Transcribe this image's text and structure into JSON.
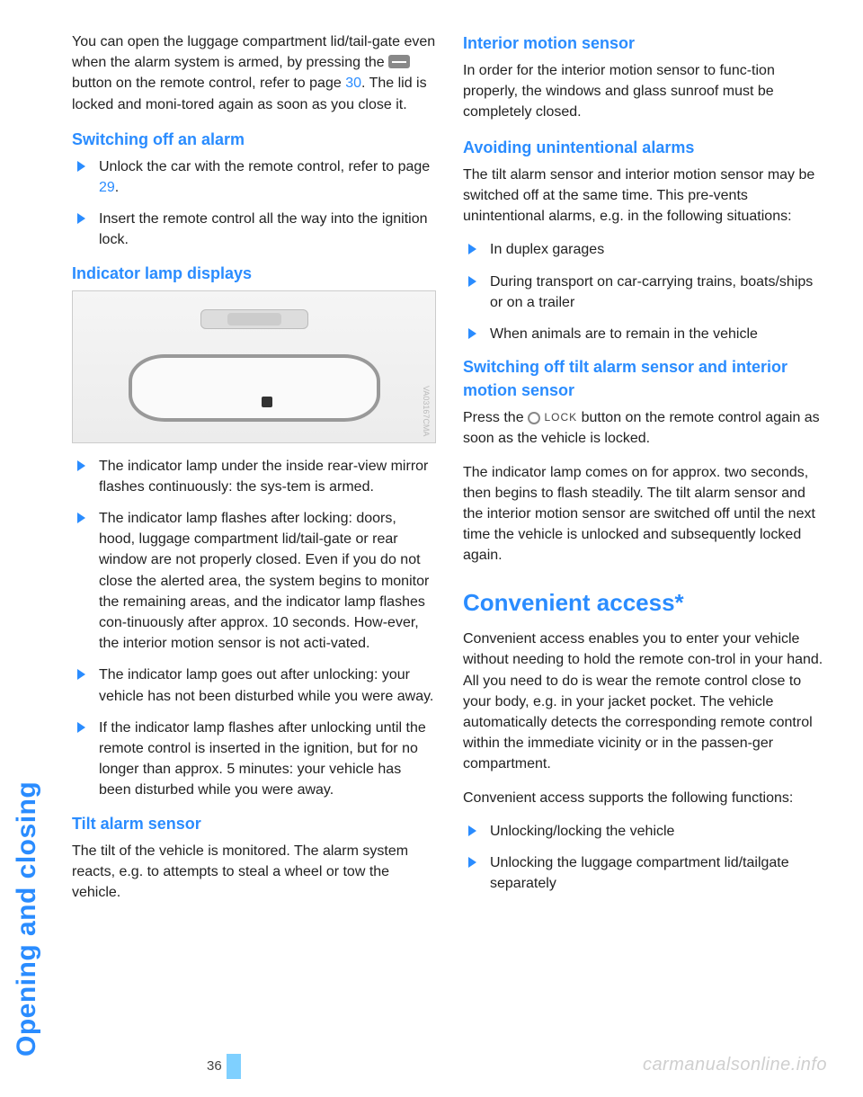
{
  "sideTab": "Opening and closing",
  "pageNumber": "36",
  "watermark": "carmanualsonline.info",
  "figureCode": "VA03167CMA",
  "colors": {
    "accent": "#2a8cff",
    "footerBar": "#7fd0ff",
    "watermark": "#cfcfcf"
  },
  "left": {
    "intro_a": "You can open the luggage compartment lid/tail-gate even when the alarm system is armed, by pressing the ",
    "intro_b": " button on the remote control, refer to page ",
    "intro_pageref": "30",
    "intro_c": ". The lid is locked and moni-tored again as soon as you close it.",
    "h1": "Switching off an alarm",
    "l1a_a": "Unlock the car with the remote control, refer to page ",
    "l1a_pageref": "29",
    "l1a_b": ".",
    "l1b": "Insert the remote control all the way into the ignition lock.",
    "h2": "Indicator lamp displays",
    "l2a": "The indicator lamp under the inside rear-view mirror flashes continuously: the sys-tem is armed.",
    "l2b": "The indicator lamp flashes after locking: doors, hood, luggage compartment lid/tail-gate or rear window are not properly closed. Even if you do not close the alerted area, the system begins to monitor the remaining areas, and the indicator lamp flashes con-tinuously after approx. 10 seconds. How-ever, the interior motion sensor is not acti-vated.",
    "l2c": "The indicator lamp goes out after unlocking: your vehicle has not been disturbed while you were away.",
    "l2d": "If the indicator lamp flashes after unlocking until the remote control is inserted in the ignition, but for no longer than approx. 5 minutes: your vehicle has been disturbed while you were away."
  },
  "right": {
    "h1": "Tilt alarm sensor",
    "p1": "The tilt of the vehicle is monitored. The alarm system reacts, e.g. to attempts to steal a wheel or tow the vehicle.",
    "h2": "Interior motion sensor",
    "p2": "In order for the interior motion sensor to func-tion properly, the windows and glass sunroof must be completely closed.",
    "h3": "Avoiding unintentional alarms",
    "p3": "The tilt alarm sensor and interior motion sensor may be switched off at the same time. This pre-vents unintentional alarms, e.g. in the following situations:",
    "l3a": "In duplex garages",
    "l3b": "During transport on car-carrying trains, boats/ships or on a trailer",
    "l3c": "When animals are to remain in the vehicle",
    "h4": "Switching off tilt alarm sensor and interior motion sensor",
    "p4a": "Press the ",
    "p4lock": "LOCK",
    "p4b": " button on the remote control again as soon as the vehicle is locked.",
    "p5": "The indicator lamp comes on for approx. two seconds, then begins to flash steadily. The tilt alarm sensor and the interior motion sensor are switched off until the next time the vehicle is unlocked and subsequently locked again.",
    "h5": "Convenient access*",
    "p6": "Convenient access enables you to enter your vehicle without needing to hold the remote con-trol in your hand. All you need to do is wear the remote control close to your body, e.g. in your jacket pocket. The vehicle automatically detects the corresponding remote control within the immediate vicinity or in the passen-ger compartment.",
    "p7": "Convenient access supports the following functions:",
    "l4a": "Unlocking/locking the vehicle",
    "l4b": "Unlocking the luggage compartment lid/tailgate separately"
  }
}
